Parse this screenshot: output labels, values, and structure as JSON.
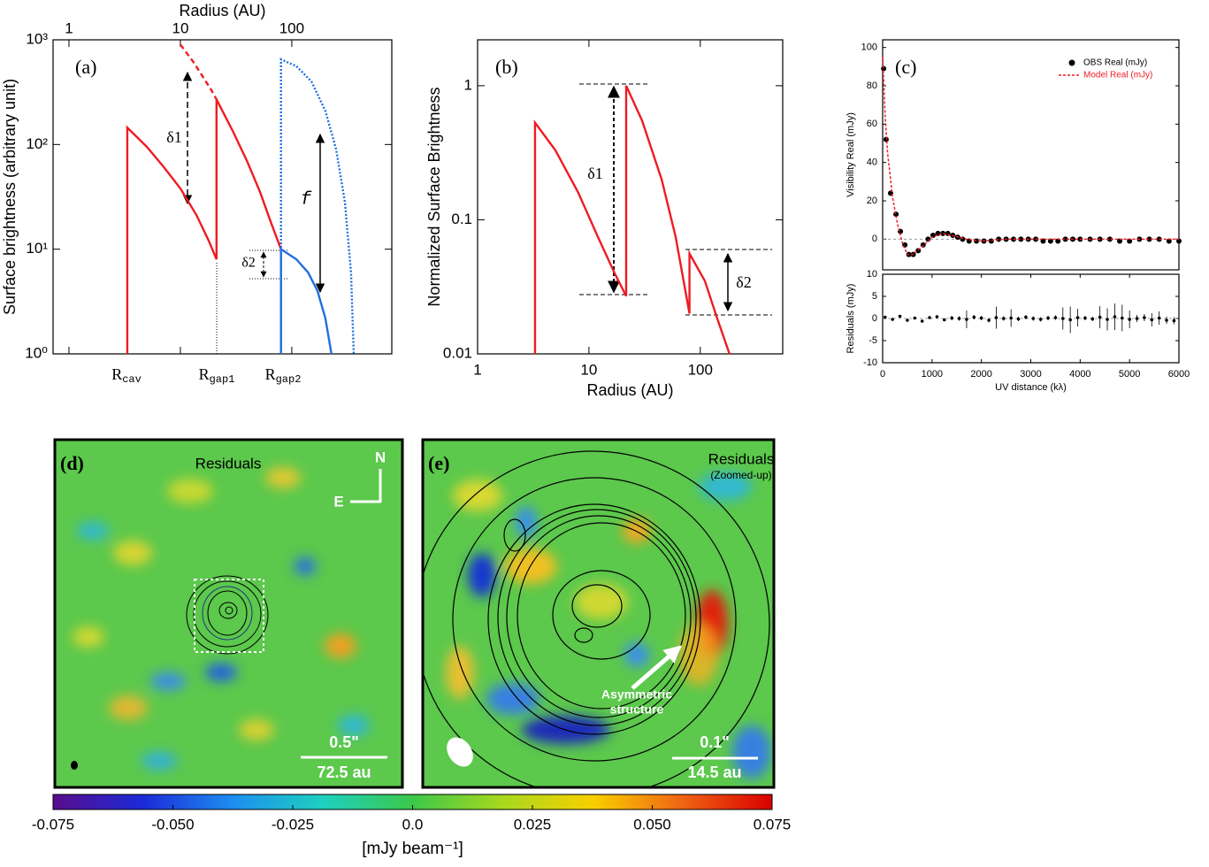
{
  "chart_data": [
    {
      "type": "line",
      "panel": "(a)",
      "xlabel": "Radius (AU)",
      "ylabel": "Surface brightness (arbitrary unit)",
      "xscale": "log",
      "yscale": "log",
      "xaxis_position": "top",
      "xlim": [
        0.72,
        790
      ],
      "ylim": [
        1,
        1000
      ],
      "xticks": [
        1,
        10,
        100
      ],
      "yticks": [
        {
          "value": 1,
          "label": "10⁰"
        },
        {
          "value": 10,
          "label": "10¹"
        },
        {
          "value": 100,
          "label": "10²"
        },
        {
          "value": 1000,
          "label": "10³"
        }
      ],
      "series": [
        {
          "color": "#ee1c24",
          "style": "solid",
          "x": [
            3.34,
            3.34,
            5,
            7,
            10,
            14,
            18,
            21.1,
            21.1,
            30,
            40,
            52,
            65,
            80
          ],
          "values": [
            1,
            145,
            95,
            62,
            38,
            21,
            12,
            8,
            270,
            130,
            68,
            35,
            18,
            10
          ]
        },
        {
          "color": "#ee1c24",
          "style": "dashed",
          "x": [
            10,
            13,
            16,
            19,
            21.1
          ],
          "values": [
            900,
            620,
            440,
            330,
            270
          ]
        },
        {
          "color": "#1f6fe0",
          "style": "solid",
          "x": [
            80,
            80,
            110,
            140,
            170,
            200,
            227
          ],
          "values": [
            1,
            10,
            8,
            6,
            4,
            2.2,
            1
          ]
        },
        {
          "color": "#1f6fe0",
          "style": "dotted",
          "x": [
            80,
            80,
            110,
            150,
            200,
            250,
            300,
            340,
            360
          ],
          "values": [
            1,
            650,
            560,
            400,
            210,
            90,
            28,
            6,
            1
          ]
        }
      ],
      "annotations": [
        "δ1",
        "δ2",
        "f"
      ],
      "radius_labels": [
        [
          "R",
          "cav"
        ],
        [
          "R",
          "gap1"
        ],
        [
          "R",
          "gap2"
        ]
      ]
    },
    {
      "type": "line",
      "panel": "(b)",
      "xlabel": "Radius (AU)",
      "ylabel": "Normalized Surface Brightness",
      "xscale": "log",
      "yscale": "log",
      "xaxis_position": "bottom",
      "xlim": [
        1,
        550
      ],
      "ylim": [
        0.01,
        2.2
      ],
      "xticks": [
        1,
        10,
        100
      ],
      "yticks": [
        0.01,
        0.1,
        1
      ],
      "series": [
        {
          "color": "#ee1c24",
          "style": "solid",
          "x": [
            3.28,
            3.28,
            5,
            8,
            12,
            17,
            21.6,
            21.6,
            30,
            45,
            60,
            80,
            80,
            110,
            140,
            183
          ],
          "values": [
            0.01,
            0.53,
            0.33,
            0.16,
            0.075,
            0.04,
            0.027,
            1.0,
            0.55,
            0.2,
            0.075,
            0.02,
            0.056,
            0.035,
            0.019,
            0.01
          ]
        }
      ],
      "annotations": [
        "δ1",
        "δ2"
      ]
    },
    {
      "type": "scatter",
      "panel": "(c)",
      "ylabel": "Visibility Real (mJy)",
      "xlim": [
        0,
        6000
      ],
      "ylim": [
        -16,
        104
      ],
      "yticks": [
        0,
        20,
        40,
        60,
        80,
        100
      ],
      "series": [
        {
          "name": "OBS Real (mJy)",
          "color": "#000000",
          "marker": "circle",
          "x": [
            20,
            70,
            160,
            270,
            360,
            450,
            530,
            620,
            720,
            820,
            920,
            1020,
            1120,
            1220,
            1320,
            1420,
            1520,
            1620,
            1750,
            1900,
            2050,
            2200,
            2350,
            2500,
            2650,
            2800,
            2950,
            3100,
            3250,
            3400,
            3550,
            3700,
            3850,
            4000,
            4200,
            4400,
            4600,
            4800,
            5000,
            5200,
            5400,
            5600,
            5800,
            6000
          ],
          "values": [
            89,
            52,
            24,
            13,
            4,
            -3,
            -8,
            -8,
            -6,
            -3,
            0,
            2,
            3,
            3,
            3,
            2,
            1,
            0,
            -1,
            -1,
            -1,
            -1,
            0,
            0,
            0,
            0,
            0,
            0,
            -1,
            -1,
            -1,
            0,
            0,
            0,
            0,
            0,
            0,
            -1,
            -1,
            0,
            0,
            0,
            -1,
            -1
          ]
        },
        {
          "name": "Model Real (mJy)",
          "color": "#ee1c24",
          "style": "dashed",
          "x": [
            0,
            50,
            100,
            200,
            300,
            400,
            500,
            600,
            800,
            1000,
            1200,
            1400,
            1700,
            2000,
            2500,
            3000,
            4000,
            5000,
            6000
          ],
          "values": [
            95,
            65,
            45,
            22,
            8,
            -2,
            -8,
            -8,
            -4,
            1,
            3,
            2,
            0,
            -1,
            0,
            0,
            0,
            0,
            0
          ]
        }
      ]
    },
    {
      "type": "errorbar",
      "ylabel": "Residuals (mJy)",
      "xlabel": "UV distance (kλ)",
      "xlim": [
        0,
        6000
      ],
      "ylim": [
        -10,
        10
      ],
      "xticks": [
        0,
        1000,
        2000,
        3000,
        4000,
        5000,
        6000
      ],
      "yticks": [
        -10,
        -5,
        0,
        5,
        10
      ],
      "color": "#000000",
      "x": [
        50,
        200,
        350,
        500,
        650,
        800,
        950,
        1100,
        1250,
        1400,
        1550,
        1700,
        1850,
        2000,
        2150,
        2300,
        2450,
        2600,
        2750,
        2900,
        3050,
        3200,
        3350,
        3500,
        3650,
        3800,
        3950,
        4100,
        4250,
        4400,
        4550,
        4700,
        4850,
        5000,
        5150,
        5300,
        5450,
        5600,
        5750,
        5900
      ],
      "values": [
        0.3,
        -0.2,
        0.5,
        -0.4,
        0.1,
        -0.6,
        0.2,
        0.4,
        -0.3,
        0.1,
        0.0,
        -0.2,
        0.3,
        0.1,
        -0.4,
        0.2,
        0.0,
        0.1,
        -0.1,
        0.3,
        0.0,
        -0.2,
        0.1,
        0.2,
        0.0,
        -0.3,
        0.2,
        0.1,
        -0.1,
        0.3,
        -0.2,
        0.4,
        0.1,
        -0.2,
        0.0,
        0.2,
        -0.3,
        0.1,
        -0.4,
        -0.5
      ],
      "errors": [
        0.3,
        0.3,
        0.3,
        0.3,
        0.3,
        0.3,
        0.3,
        0.3,
        0.3,
        0.5,
        0.5,
        2,
        0.5,
        0.5,
        0.5,
        2.5,
        0.5,
        2,
        0.5,
        0.5,
        0.5,
        0.5,
        0.5,
        0.5,
        2.5,
        3,
        2,
        0.5,
        0.5,
        2.5,
        2.5,
        3,
        3,
        2,
        0.8,
        0.8,
        1.5,
        1.5,
        0.8,
        0.8
      ]
    },
    {
      "type": "image",
      "panel": "(d)",
      "title": "Residuals",
      "compass": [
        "N",
        "E"
      ],
      "scalebar": [
        "0.5\"",
        "72.5 au"
      ]
    },
    {
      "type": "image",
      "panel": "(e)",
      "title": "Residuals",
      "subtitle": "(Zoomed-up)",
      "annotation": [
        "Asymmetric",
        "structure"
      ],
      "scalebar": [
        "0.1\"",
        "14.5 au"
      ]
    },
    {
      "type": "colorbar",
      "label": "[mJy beam⁻¹]",
      "lim": [
        -0.075,
        0.075
      ],
      "ticks": [
        -0.075,
        {
          "value": -0.05,
          "label": "-0.050"
        },
        -0.025,
        {
          "value": 0,
          "label": "0.0"
        },
        0.025,
        {
          "value": 0.05,
          "label": "0.050"
        },
        0.075
      ],
      "colors": [
        "#5a0c8c",
        "#1a2ad8",
        "#1e8ef0",
        "#1ed0c0",
        "#3cc84a",
        "#a8d81e",
        "#f8d000",
        "#f06414",
        "#d80000"
      ]
    }
  ]
}
